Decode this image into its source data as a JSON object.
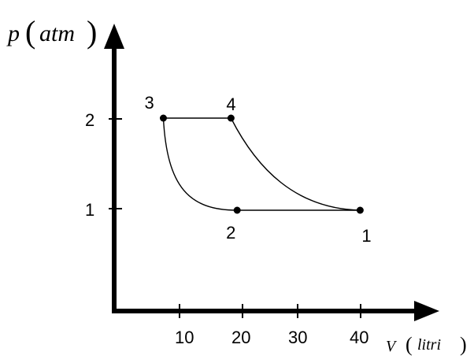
{
  "axes": {
    "y_label_var": "p",
    "y_label_unit": "atm",
    "x_label_var": "V",
    "x_label_unit": "litri",
    "y_ticks": [
      "2",
      "1"
    ],
    "x_ticks": [
      "10",
      "20",
      "30",
      "40"
    ]
  },
  "chart_data": {
    "type": "diagram",
    "points": [
      {
        "label": "1",
        "V": 40,
        "p": 1
      },
      {
        "label": "2",
        "V": 20,
        "p": 1
      },
      {
        "label": "3",
        "V": 8,
        "p": 2
      },
      {
        "label": "4",
        "V": 19,
        "p": 2
      }
    ],
    "segments": [
      {
        "from": "2",
        "to": "1",
        "kind": "line"
      },
      {
        "from": "3",
        "to": "4",
        "kind": "line"
      },
      {
        "from": "3",
        "to": "2",
        "kind": "curve"
      },
      {
        "from": "4",
        "to": "1",
        "kind": "curve"
      }
    ]
  }
}
